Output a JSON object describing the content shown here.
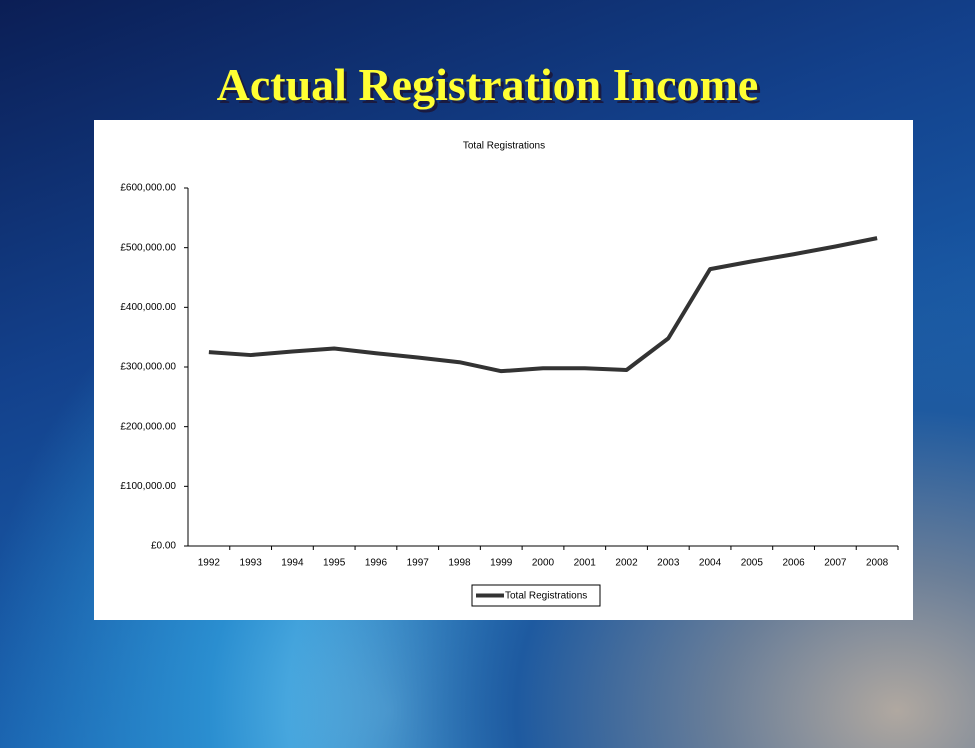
{
  "slide": {
    "title": "Actual Registration Income"
  },
  "chart_data": {
    "type": "line",
    "title": "Total Registrations",
    "categories": [
      "1992",
      "1993",
      "1994",
      "1995",
      "1996",
      "1997",
      "1998",
      "1999",
      "2000",
      "2001",
      "2002",
      "2003",
      "2004",
      "2005",
      "2006",
      "2007",
      "2008"
    ],
    "series": [
      {
        "name": "Total Registrations",
        "color": "#333333",
        "values": [
          325000,
          320000,
          326000,
          331000,
          323000,
          316000,
          308000,
          293000,
          298000,
          298000,
          295000,
          348000,
          464000,
          477000,
          489000,
          502000,
          516000
        ]
      }
    ],
    "ylim": [
      0,
      600000
    ],
    "yticks": [
      {
        "value": 0,
        "label": "£0.00"
      },
      {
        "value": 100000,
        "label": "£100,000.00"
      },
      {
        "value": 200000,
        "label": "£200,000.00"
      },
      {
        "value": 300000,
        "label": "£300,000.00"
      },
      {
        "value": 400000,
        "label": "£400,000.00"
      },
      {
        "value": 500000,
        "label": "£500,000.00"
      },
      {
        "value": 600000,
        "label": "£600,000.00"
      }
    ],
    "grid": false,
    "legend": "bottom"
  }
}
